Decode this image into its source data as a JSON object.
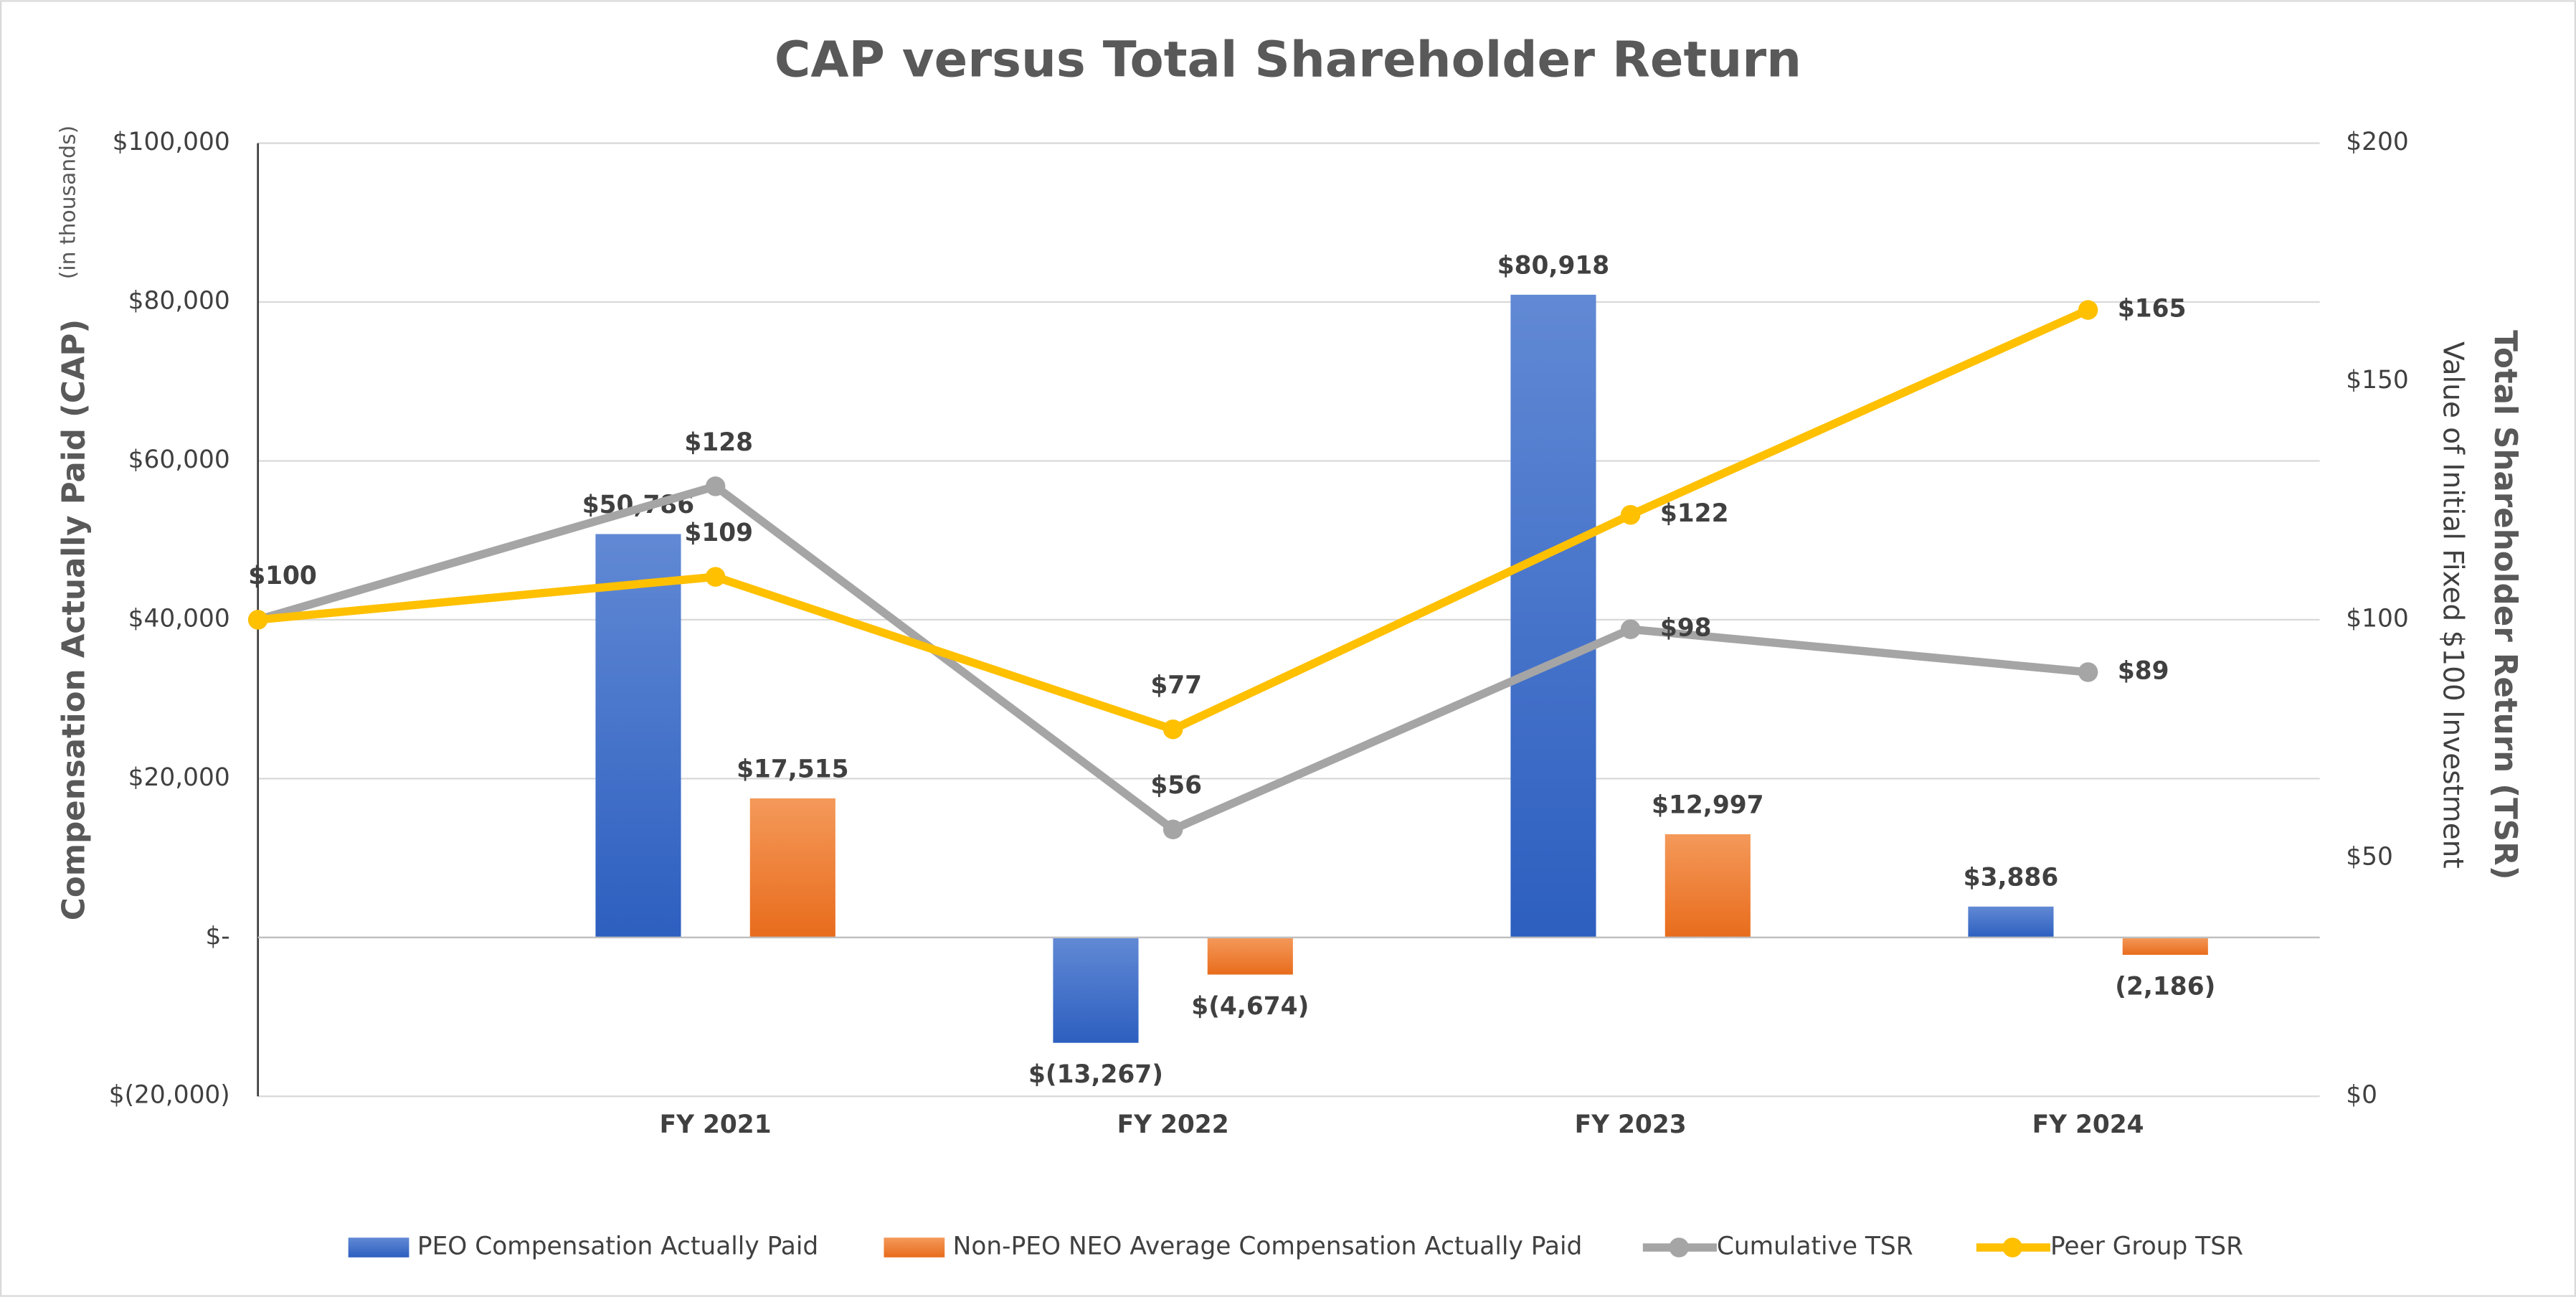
{
  "chart_data": {
    "type": "bar-line",
    "title": "CAP versus Total Shareholder Return",
    "y_label": "Compensation Actually Paid (CAP)",
    "y_sublabel": "(in thousands)",
    "y2_label": "Total Shareholder Return (TSR)",
    "y2_sublabel": "Value of Initial Fixed $100 Investment",
    "categories": [
      null,
      "FY 2021",
      "FY 2022",
      "FY 2023",
      "FY 2024"
    ],
    "ylim": [
      -20000,
      100000
    ],
    "yticks": [
      {
        "value": -20000,
        "label": "$(20,000)"
      },
      {
        "value": 0,
        "label": "$-"
      },
      {
        "value": 20000,
        "label": "$20,000"
      },
      {
        "value": 40000,
        "label": "$40,000"
      },
      {
        "value": 60000,
        "label": "$60,000"
      },
      {
        "value": 80000,
        "label": "$80,000"
      },
      {
        "value": 100000,
        "label": "$100,000"
      }
    ],
    "y2lim": [
      0,
      200
    ],
    "y2ticks": [
      {
        "value": 0,
        "label": "$0"
      },
      {
        "value": 50,
        "label": "$50"
      },
      {
        "value": 100,
        "label": "$100"
      },
      {
        "value": 150,
        "label": "$150"
      },
      {
        "value": 200,
        "label": "$200"
      }
    ],
    "grid": true,
    "legend": "bottom",
    "series": [
      {
        "name": "PEO Compensation Actually Paid",
        "type": "bar",
        "color": "#4472c4",
        "values": [
          null,
          50786,
          -13267,
          80918,
          3886
        ],
        "value_labels": [
          null,
          "$50,786",
          "$(13,267)",
          "$80,918",
          "$3,886"
        ]
      },
      {
        "name": "Non-PEO NEO Average Compensation Actually Paid",
        "type": "bar",
        "color": "#ed7d31",
        "values": [
          null,
          17515,
          -4674,
          12997,
          -2186
        ],
        "value_labels": [
          null,
          "$17,515",
          "$(4,674)",
          "$12,997",
          "(2,186)"
        ]
      },
      {
        "name": "Cumulative TSR",
        "type": "line",
        "axis": "y2",
        "color": "#a5a5a5",
        "values": [
          100,
          128,
          56,
          98,
          89
        ],
        "value_labels": [
          "$100",
          "$128",
          "$56",
          "$98",
          "$89"
        ]
      },
      {
        "name": "Peer Group TSR",
        "type": "line",
        "axis": "y2",
        "color": "#ffc000",
        "values": [
          100,
          109,
          77,
          122,
          165
        ],
        "value_labels": [
          "$100",
          "$109",
          "$77",
          "$122",
          "$165"
        ]
      }
    ]
  }
}
